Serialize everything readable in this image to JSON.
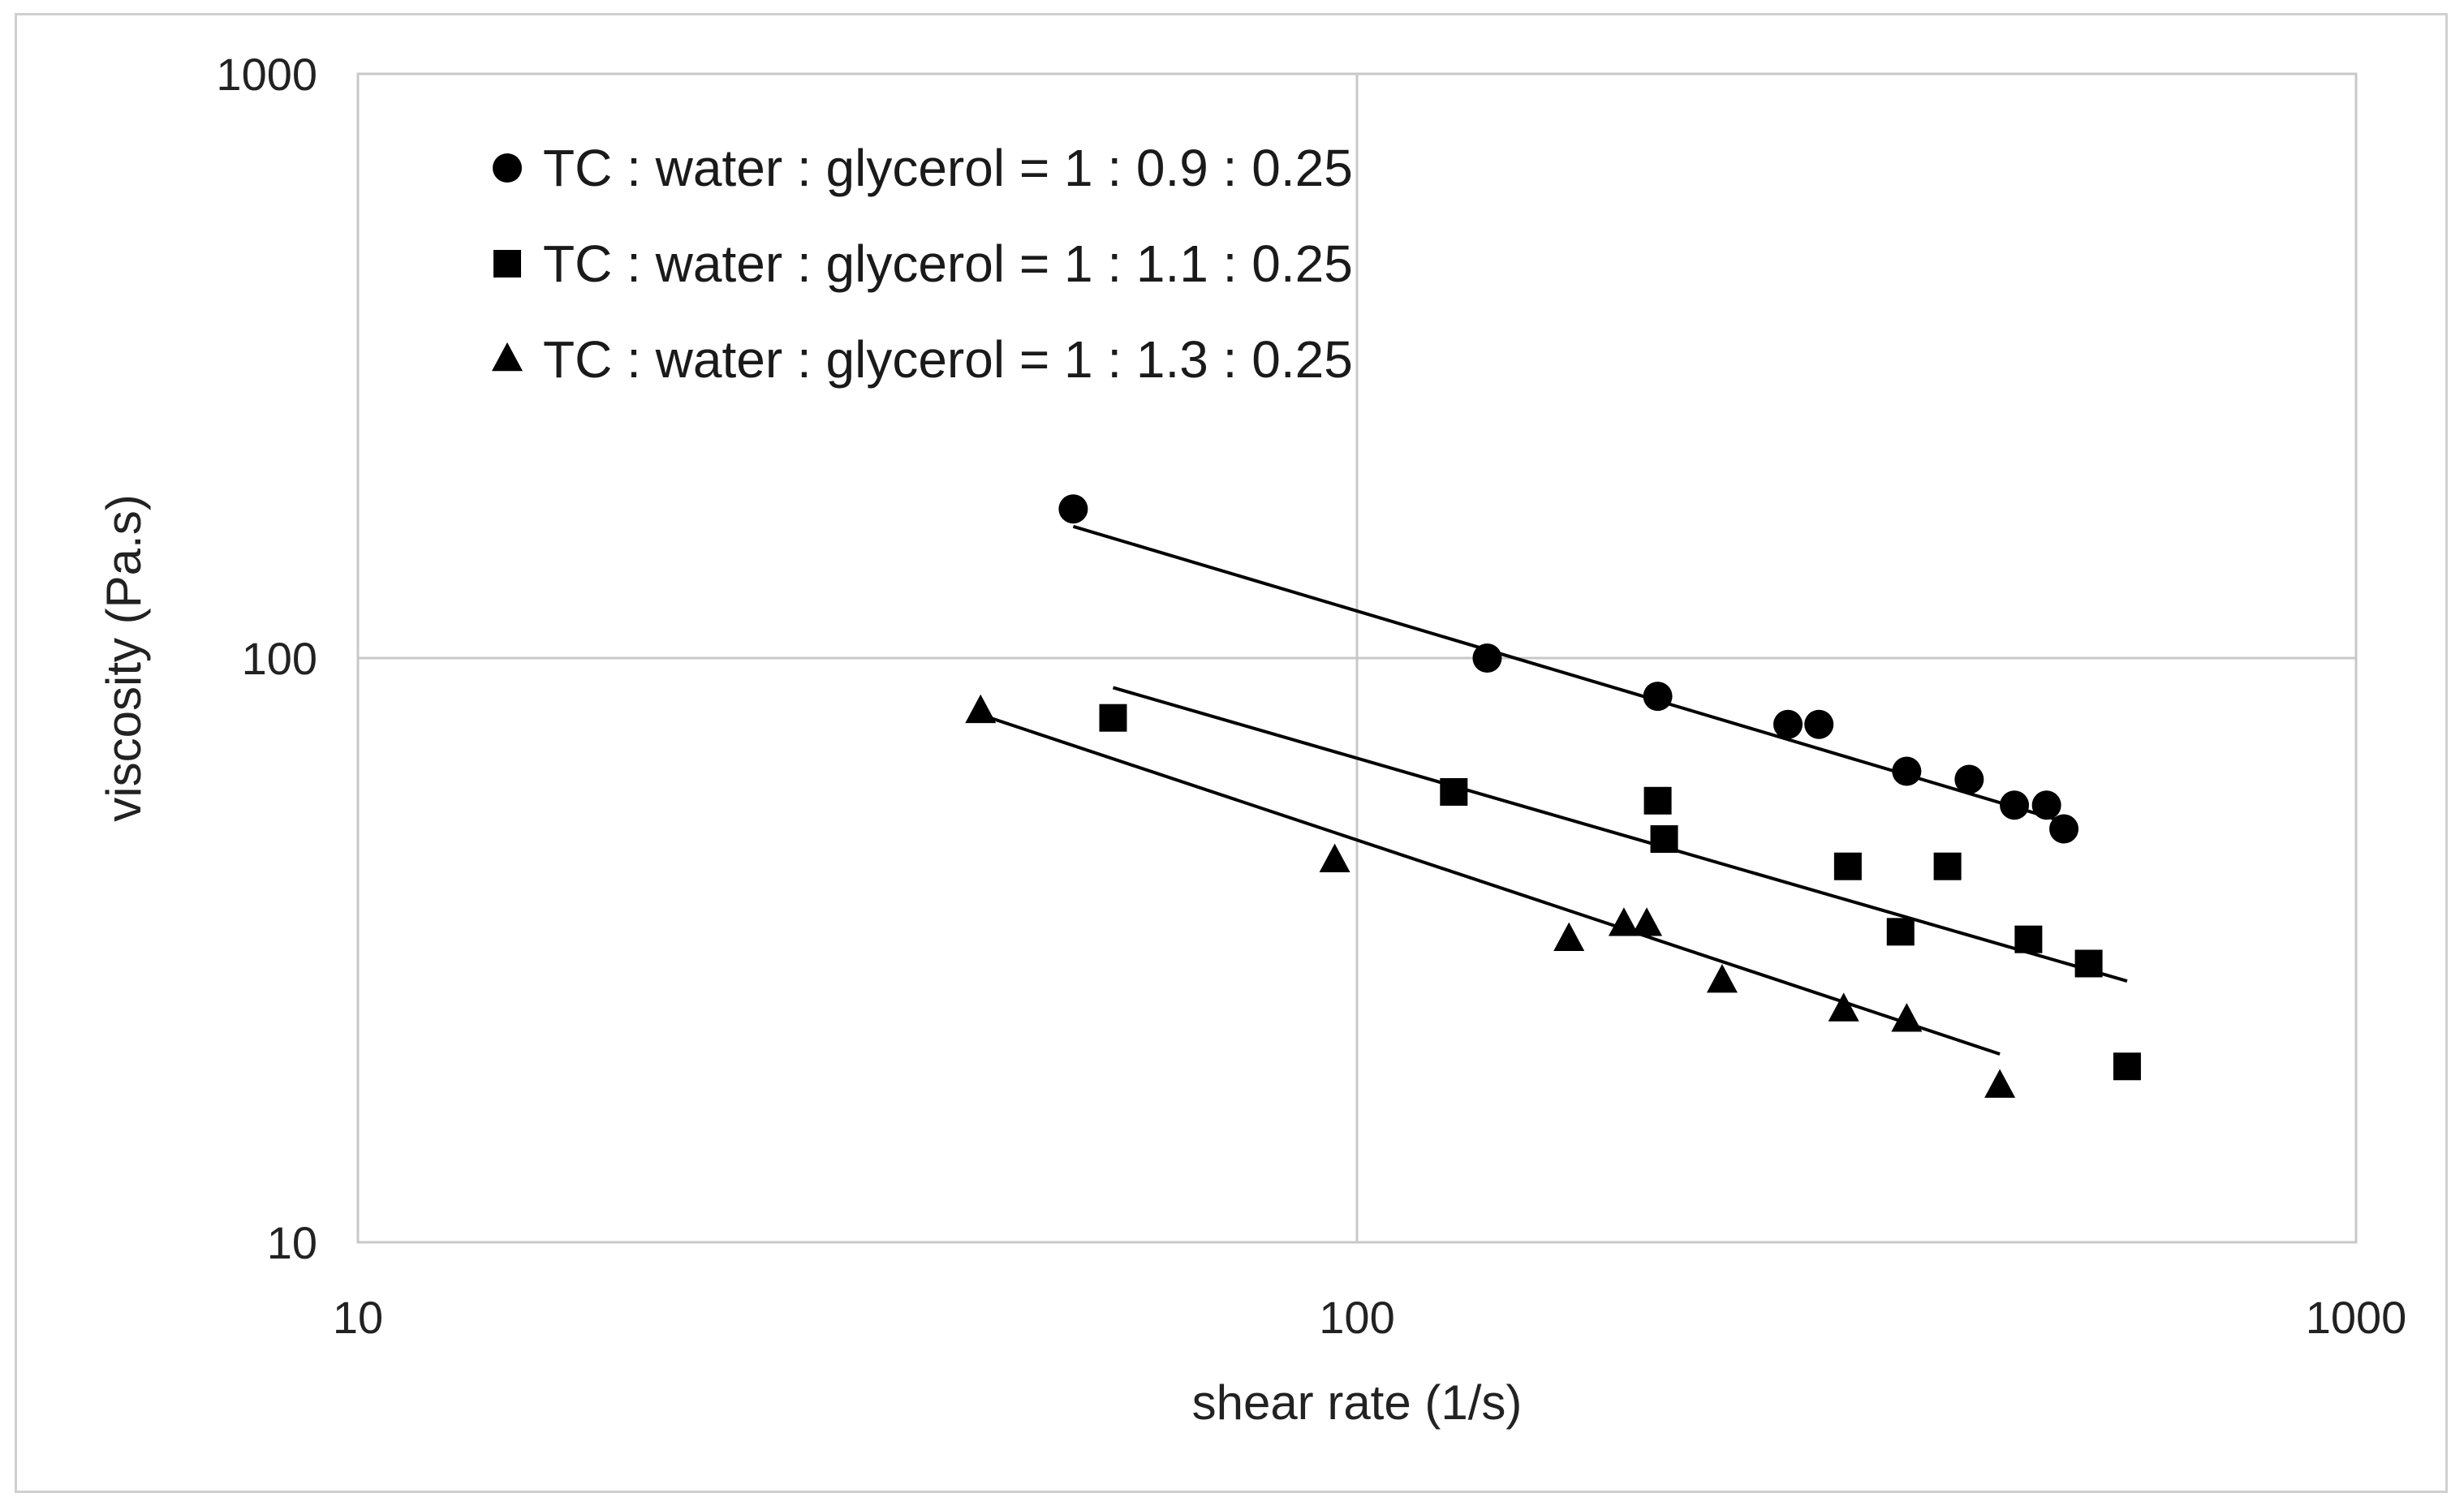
{
  "chart_data": {
    "type": "scatter",
    "title": "",
    "xlabel": "shear rate (1/s)",
    "ylabel": "viscosity  (Pa.s)",
    "xscale": "log",
    "yscale": "log",
    "xlim": [
      10,
      1000
    ],
    "ylim": [
      10,
      1000
    ],
    "xticks": [
      10,
      100,
      1000
    ],
    "yticks": [
      10,
      100,
      1000
    ],
    "xtick_labels": [
      "10",
      "100",
      "1000"
    ],
    "ytick_labels": [
      "10",
      "100",
      "1000"
    ],
    "grid": true,
    "legend_position": "top-left",
    "colors": {
      "marker": "#000000",
      "trendline": "#000000",
      "grid": "#c8c8c8",
      "frame": "#c8c8c8"
    },
    "series": [
      {
        "name": "TC : water : glycerol = 1 : 0.9 : 0.25",
        "marker": "circle",
        "x": [
          52,
          135,
          200,
          270,
          290,
          355,
          410,
          455,
          490,
          510
        ],
        "y": [
          180,
          100,
          86,
          77,
          77,
          64,
          62,
          56,
          56,
          51
        ],
        "trendline": {
          "x": [
            52,
            500
          ],
          "y": [
            168,
            53
          ]
        }
      },
      {
        "name": "TC : water : glycerol = 1 : 1.1 : 0.25",
        "marker": "square",
        "x": [
          57,
          125,
          200,
          203,
          310,
          350,
          390,
          470,
          540,
          590
        ],
        "y": [
          79,
          59,
          57,
          49,
          44,
          34,
          44,
          33,
          30,
          20
        ],
        "trendline": {
          "x": [
            57,
            590
          ],
          "y": [
            89,
            28
          ]
        }
      },
      {
        "name": "TC : water : glycerol = 1 : 1.3 : 0.25",
        "marker": "triangle",
        "x": [
          42,
          95,
          163,
          185,
          195,
          232,
          307,
          355,
          440
        ],
        "y": [
          81,
          45,
          33,
          35,
          35,
          28,
          25,
          24,
          18.5
        ],
        "trendline": {
          "x": [
            42,
            440
          ],
          "y": [
            80,
            21
          ]
        }
      }
    ]
  }
}
